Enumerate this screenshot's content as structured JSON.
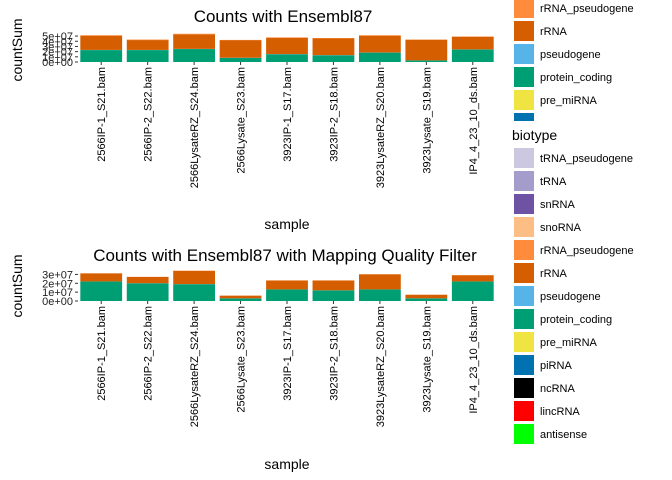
{
  "chart_data": [
    {
      "type": "bar",
      "stacked": true,
      "title": "Counts with Ensembl87",
      "xlabel": "sample",
      "ylabel": "countSum",
      "categories": [
        "2566IP-1_S21.bam",
        "2566IP-2_S22.bam",
        "2566LysateRZ_S24.bam",
        "2566Lysate_S23.bam",
        "3923IP-1_S17.bam",
        "3923IP-2_S18.bam",
        "3923LysateRZ_S20.bam",
        "3923Lysate_S19.bam",
        "IP4_4_23_10_ds.bam"
      ],
      "yticks": [
        "0e+00",
        "1e+07",
        "2e+07",
        "3e+07",
        "4e+07",
        "5e+07"
      ],
      "ylim": [
        0,
        54000000
      ],
      "series": [
        {
          "name": "protein_coding",
          "color": "#009E73",
          "values": [
            23000000,
            23000000,
            25000000,
            8000000,
            15000000,
            13000000,
            18000000,
            3000000,
            24000000
          ]
        },
        {
          "name": "rRNA",
          "color": "#D55E00",
          "values": [
            27000000,
            19000000,
            28000000,
            34000000,
            31000000,
            32000000,
            32000000,
            40000000,
            24000000
          ]
        },
        {
          "name": "pseudogene",
          "color": "#56B4E9",
          "values": [
            300000,
            300000,
            300000,
            200000,
            300000,
            300000,
            300000,
            100000,
            300000
          ]
        },
        {
          "name": "rRNA_pseudogene",
          "color": "#FF8C3C",
          "values": [
            1500000,
            1000000,
            1200000,
            400000,
            1200000,
            1000000,
            1500000,
            300000,
            1000000
          ]
        }
      ],
      "legend_visible_entries": [
        "rRNA_pseudogene",
        "rRNA",
        "pseudogene",
        "protein_coding",
        "pre_miRNA"
      ]
    },
    {
      "type": "bar",
      "stacked": true,
      "title": "Counts with Ensembl87 with Mapping Quality Filter",
      "xlabel": "sample",
      "ylabel": "countSum",
      "categories": [
        "2566IP-1_S21.bam",
        "2566IP-2_S22.bam",
        "2566LysateRZ_S24.bam",
        "2566Lysate_S23.bam",
        "3923IP-1_S17.bam",
        "3923IP-2_S18.bam",
        "3923LysateRZ_S20.bam",
        "3923Lysate_S19.bam",
        "IP4_4_23_10_ds.bam"
      ],
      "yticks": [
        "0e+00",
        "1e+07",
        "2e+07",
        "3e+07"
      ],
      "ylim": [
        0,
        35000000
      ],
      "series": [
        {
          "name": "protein_coding",
          "color": "#009E73",
          "values": [
            22000000,
            20000000,
            19000000,
            3000000,
            13000000,
            12000000,
            13000000,
            3000000,
            22000000
          ]
        },
        {
          "name": "rRNA",
          "color": "#D55E00",
          "values": [
            9000000,
            7000000,
            15000000,
            3000000,
            10000000,
            11000000,
            17000000,
            4000000,
            7000000
          ]
        },
        {
          "name": "pseudogene",
          "color": "#56B4E9",
          "values": [
            100000,
            100000,
            100000,
            50000,
            100000,
            100000,
            100000,
            50000,
            100000
          ]
        },
        {
          "name": "rRNA_pseudogene",
          "color": "#FF8C3C",
          "values": [
            200000,
            200000,
            200000,
            100000,
            200000,
            200000,
            200000,
            100000,
            200000
          ]
        }
      ]
    }
  ],
  "legend": {
    "title": "biotype",
    "entries": [
      {
        "label": "tRNA_pseudogene",
        "color": "#CCC8E0"
      },
      {
        "label": "tRNA",
        "color": "#A49CCB"
      },
      {
        "label": "snRNA",
        "color": "#6E52A3"
      },
      {
        "label": "snoRNA",
        "color": "#FDBE85"
      },
      {
        "label": "rRNA_pseudogene",
        "color": "#FF8C3C"
      },
      {
        "label": "rRNA",
        "color": "#D55E00"
      },
      {
        "label": "pseudogene",
        "color": "#56B4E9"
      },
      {
        "label": "protein_coding",
        "color": "#009E73"
      },
      {
        "label": "pre_miRNA",
        "color": "#F0E442"
      },
      {
        "label": "piRNA",
        "color": "#0072B2"
      },
      {
        "label": "ncRNA",
        "color": "#000000"
      },
      {
        "label": "lincRNA",
        "color": "#FF0000"
      },
      {
        "label": "antisense",
        "color": "#00FF00"
      }
    ]
  }
}
